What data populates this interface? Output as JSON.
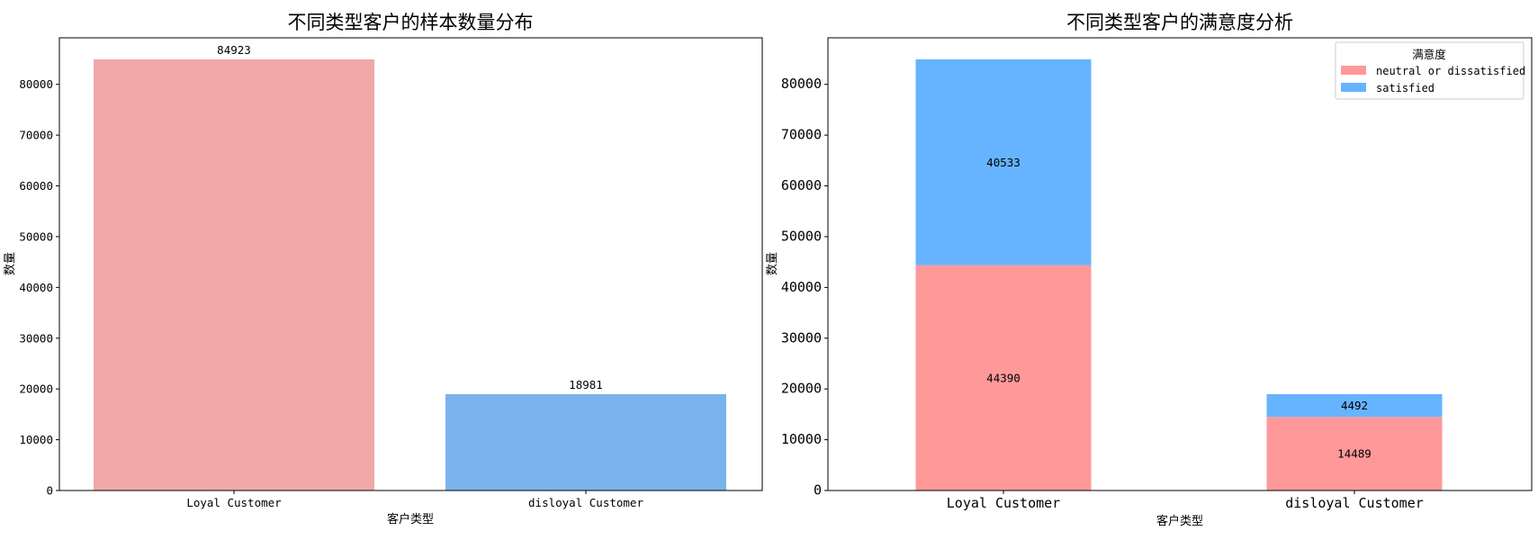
{
  "chart_data": [
    {
      "type": "bar",
      "title": "不同类型客户的样本数量分布",
      "xlabel": "客户类型",
      "ylabel": "数量",
      "categories": [
        "Loyal Customer",
        "disloyal Customer"
      ],
      "values": [
        84923,
        18981
      ],
      "data_labels": [
        "84923",
        "18981"
      ],
      "colors": [
        "#f0a8a8",
        "#7ab3ec"
      ],
      "ylim": [
        0,
        89169
      ],
      "yticks": [
        0,
        10000,
        20000,
        30000,
        40000,
        50000,
        60000,
        70000,
        80000
      ],
      "grid": false,
      "legend": null
    },
    {
      "type": "bar",
      "stacked": true,
      "title": "不同类型客户的满意度分析",
      "xlabel": "客户类型",
      "ylabel": "数量",
      "categories": [
        "Loyal Customer",
        "disloyal Customer"
      ],
      "series": [
        {
          "name": "neutral or dissatisfied",
          "values": [
            44390,
            14489
          ],
          "color": "#ff9999"
        },
        {
          "name": "satisfied",
          "values": [
            40533,
            4492
          ],
          "color": "#66b3ff"
        }
      ],
      "ylim": [
        0,
        89169
      ],
      "yticks": [
        0,
        10000,
        20000,
        30000,
        40000,
        50000,
        60000,
        70000,
        80000
      ],
      "grid": false,
      "legend": {
        "title": "满意度",
        "placement": "top-right"
      }
    }
  ]
}
